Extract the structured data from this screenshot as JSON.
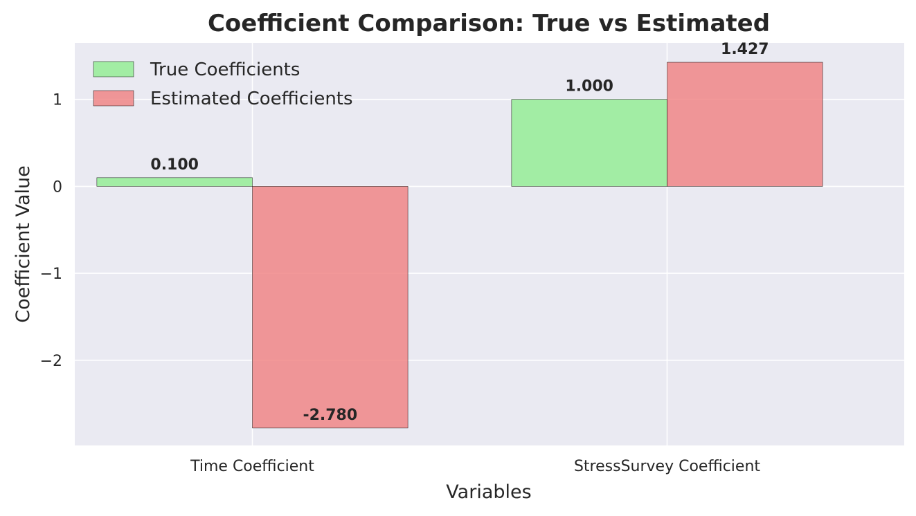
{
  "chart_data": {
    "type": "bar",
    "title": "Coefficient Comparison: True vs Estimated",
    "xlabel": "Variables",
    "ylabel": "Coefficient Value",
    "categories": [
      "Time Coefficient",
      "StressSurvey Coefficient"
    ],
    "series": [
      {
        "name": "True Coefficients",
        "values": [
          0.1,
          1.0
        ],
        "labels": [
          "0.100",
          "1.000"
        ],
        "color": "#90ee90"
      },
      {
        "name": "Estimated Coefficients",
        "values": [
          -2.78,
          1.427
        ],
        "labels": [
          "-2.780",
          "1.427"
        ],
        "color": "#f08080"
      }
    ],
    "ylim": [
      -2.98,
      1.65
    ],
    "yticks": [
      1,
      0,
      -1,
      -2
    ],
    "ytick_labels": [
      "1",
      "0",
      "−1",
      "−2"
    ],
    "grid": true,
    "legend_position": "top-left",
    "background_color": "#eaeaf2",
    "grid_color": "#ffffff"
  }
}
